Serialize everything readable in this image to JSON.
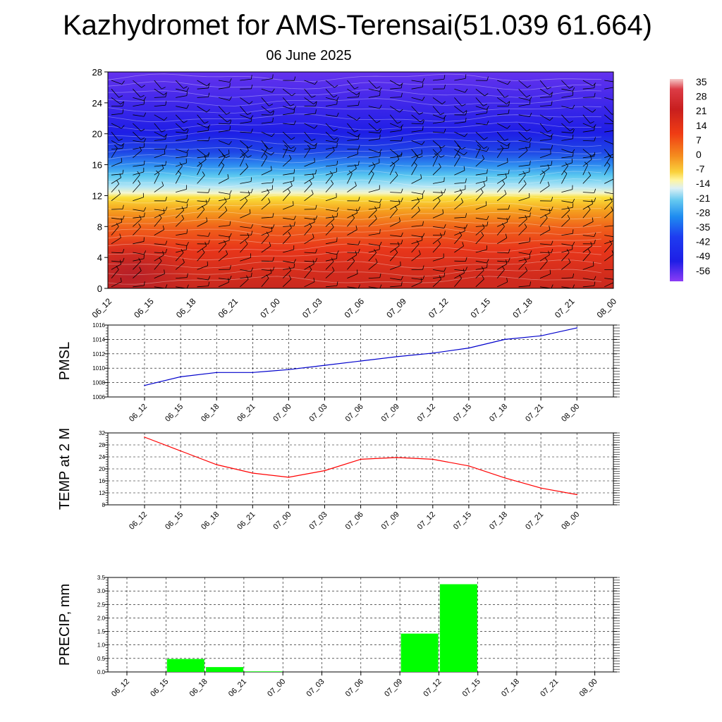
{
  "title": "Kazhydromet for AMS-Terensai(51.039 61.664)",
  "subtitle": "06 June 2025",
  "colorbar": {
    "labels": [
      "35",
      "28",
      "21",
      "14",
      "7",
      "0",
      "-7",
      "-14",
      "-21",
      "-28",
      "-35",
      "-42",
      "-49",
      "-56"
    ]
  },
  "chart_data": [
    {
      "type": "heatmap",
      "y_ticks": [
        "0",
        "4",
        "8",
        "12",
        "16",
        "20",
        "24",
        "28"
      ],
      "ylim": [
        0,
        28
      ],
      "x_ticks": [
        "06_12",
        "06_15",
        "06_18",
        "06_21",
        "07_00",
        "07_03",
        "07_06",
        "07_09",
        "07_12",
        "07_15",
        "07_18",
        "07_21",
        "08_00"
      ],
      "colorbar_range": [
        -56,
        35
      ],
      "note_levels": "temperature filled contours with wind barbs"
    },
    {
      "type": "line",
      "ylabel": "PMSL",
      "x": [
        "06_12",
        "06_15",
        "06_18",
        "06_21",
        "07_00",
        "07_03",
        "07_06",
        "07_09",
        "07_12",
        "07_15",
        "07_18",
        "07_21",
        "08_00"
      ],
      "values": [
        1007.6,
        1008.8,
        1009.4,
        1009.4,
        1009.8,
        1010.4,
        1011.0,
        1011.6,
        1012.1,
        1012.8,
        1014.0,
        1014.5,
        1015.6
      ],
      "y_ticks": [
        "1006",
        "1008",
        "1010",
        "1012",
        "1014",
        "1016"
      ],
      "ylim": [
        1006,
        1016
      ],
      "color": "#0000cc"
    },
    {
      "type": "line",
      "ylabel": "TEMP at 2 M",
      "x": [
        "06_12",
        "06_15",
        "06_18",
        "06_21",
        "07_00",
        "07_03",
        "07_06",
        "07_09",
        "07_12",
        "07_15",
        "07_18",
        "07_21",
        "08_00"
      ],
      "values": [
        30.6,
        26.0,
        21.4,
        18.6,
        17.2,
        19.4,
        23.2,
        23.8,
        23.2,
        21.0,
        17.0,
        13.6,
        11.4
      ],
      "y_ticks": [
        "8",
        "12",
        "16",
        "20",
        "24",
        "28",
        "32"
      ],
      "ylim": [
        8,
        32
      ],
      "color": "#ff0000"
    },
    {
      "type": "bar",
      "ylabel": "PRECIP, mm",
      "categories": [
        "06_12",
        "06_15",
        "06_18",
        "06_21",
        "07_00",
        "07_03",
        "07_06",
        "07_09",
        "07_12",
        "07_15",
        "07_18",
        "07_21",
        "08_00"
      ],
      "values": [
        0.0,
        0.48,
        0.18,
        0.02,
        0.0,
        0.0,
        0.0,
        1.42,
        3.25,
        0.0,
        0.0,
        0.0,
        0.0
      ],
      "y_ticks": [
        "0.0",
        "0.5",
        "1.0",
        "1.5",
        "2.0",
        "2.5",
        "3.0",
        "3.5"
      ],
      "ylim": [
        0,
        3.5
      ],
      "color": "#00ff00"
    }
  ]
}
